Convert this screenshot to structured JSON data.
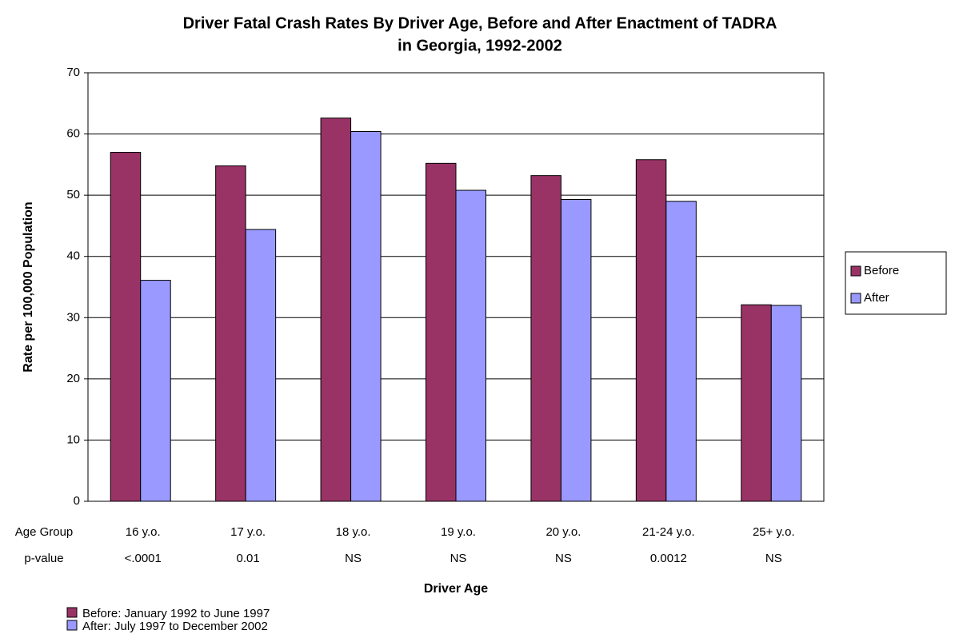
{
  "chart_data": {
    "type": "bar",
    "title": [
      "Driver Fatal Crash Rates By Driver Age, Before and After Enactment of TADRA",
      "in Georgia, 1992-2002"
    ],
    "xlabel": "Driver Age",
    "ylabel": "Rate per 100,000 Population",
    "categories": [
      "16 y.o.",
      "17 y.o.",
      "18 y.o.",
      "19 y.o.",
      "20 y.o.",
      "21-24 y.o.",
      "25+ y.o."
    ],
    "row_labels": [
      "Age Group",
      "p-value"
    ],
    "p_values": [
      "<.0001",
      "0.01",
      "NS",
      "NS",
      "NS",
      "0.0012",
      "NS"
    ],
    "series": [
      {
        "name": "Before",
        "color": "#993366",
        "description": "Before: January 1992 to June 1997",
        "values": [
          57.0,
          54.8,
          62.6,
          55.2,
          53.2,
          55.8,
          32.1
        ]
      },
      {
        "name": "After",
        "color": "#9999ff",
        "description": "After: July 1997 to December 2002",
        "values": [
          36.1,
          44.4,
          60.4,
          50.8,
          49.3,
          49.0,
          32.0
        ]
      }
    ],
    "ylim": [
      0,
      70
    ],
    "yticks": [
      0,
      10,
      20,
      30,
      40,
      50,
      60,
      70
    ],
    "grid": true,
    "legend": "right"
  }
}
